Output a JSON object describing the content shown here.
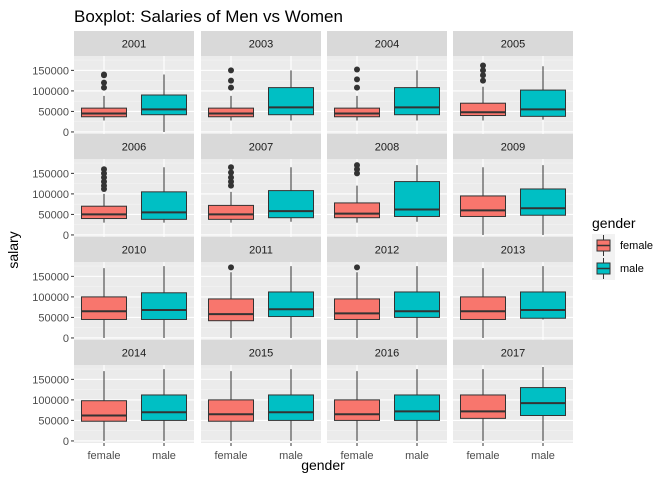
{
  "chart_data": {
    "type": "boxplot",
    "title": "Boxplot: Salaries of Men vs Women",
    "xlabel": "gender",
    "ylabel": "salary",
    "categories": [
      "female",
      "male"
    ],
    "ylim": [
      -5000,
      185000
    ],
    "yticks": [
      0,
      50000,
      100000,
      150000
    ],
    "ytick_labels": [
      "0",
      "50000",
      "100000",
      "150000"
    ],
    "facet_layout": {
      "rows": 4,
      "cols": 4
    },
    "grid": true,
    "legend": {
      "title": "gender",
      "position": "right",
      "entries": [
        {
          "label": "female",
          "color": "#F8766D"
        },
        {
          "label": "male",
          "color": "#00BFC4"
        }
      ]
    },
    "facets": [
      {
        "label": "2001",
        "boxes": [
          {
            "group": "female",
            "low": 28000,
            "q1": 37000,
            "median": 45000,
            "q3": 58000,
            "high": 88000,
            "outliers": [
              108000,
              120000,
              138000,
              140000
            ]
          },
          {
            "group": "male",
            "low": 0,
            "q1": 42000,
            "median": 55000,
            "q3": 90000,
            "high": 140000,
            "outliers": []
          }
        ]
      },
      {
        "label": "2003",
        "boxes": [
          {
            "group": "female",
            "low": 28000,
            "q1": 37000,
            "median": 45000,
            "q3": 58000,
            "high": 88000,
            "outliers": [
              108000,
              125000,
              150000
            ]
          },
          {
            "group": "male",
            "low": 28000,
            "q1": 42000,
            "median": 60000,
            "q3": 108000,
            "high": 150000,
            "outliers": []
          }
        ]
      },
      {
        "label": "2004",
        "boxes": [
          {
            "group": "female",
            "low": 28000,
            "q1": 37000,
            "median": 45000,
            "q3": 58000,
            "high": 88000,
            "outliers": [
              108000,
              128000,
              152000
            ]
          },
          {
            "group": "male",
            "low": 28000,
            "q1": 42000,
            "median": 60000,
            "q3": 108000,
            "high": 150000,
            "outliers": []
          }
        ]
      },
      {
        "label": "2005",
        "boxes": [
          {
            "group": "female",
            "low": 28000,
            "q1": 40000,
            "median": 48000,
            "q3": 70000,
            "high": 110000,
            "outliers": [
              125000,
              138000,
              150000,
              162000
            ]
          },
          {
            "group": "male",
            "low": 30000,
            "q1": 38000,
            "median": 55000,
            "q3": 102000,
            "high": 160000,
            "outliers": []
          }
        ]
      },
      {
        "label": "2006",
        "boxes": [
          {
            "group": "female",
            "low": 30000,
            "q1": 40000,
            "median": 50000,
            "q3": 70000,
            "high": 100000,
            "outliers": [
              112000,
              120000,
              130000,
              140000,
              150000,
              160000
            ]
          },
          {
            "group": "male",
            "low": 30000,
            "q1": 38000,
            "median": 55000,
            "q3": 105000,
            "high": 165000,
            "outliers": []
          }
        ]
      },
      {
        "label": "2007",
        "boxes": [
          {
            "group": "female",
            "low": 30000,
            "q1": 38000,
            "median": 50000,
            "q3": 72000,
            "high": 105000,
            "outliers": [
              120000,
              130000,
              140000,
              152000,
              165000
            ]
          },
          {
            "group": "male",
            "low": 32000,
            "q1": 42000,
            "median": 58000,
            "q3": 108000,
            "high": 165000,
            "outliers": []
          }
        ]
      },
      {
        "label": "2008",
        "boxes": [
          {
            "group": "female",
            "low": 30000,
            "q1": 42000,
            "median": 52000,
            "q3": 78000,
            "high": 120000,
            "outliers": [
              150000,
              160000,
              170000
            ]
          },
          {
            "group": "male",
            "low": 32000,
            "q1": 45000,
            "median": 62000,
            "q3": 130000,
            "high": 170000,
            "outliers": []
          }
        ]
      },
      {
        "label": "2009",
        "boxes": [
          {
            "group": "female",
            "low": 0,
            "q1": 45000,
            "median": 60000,
            "q3": 95000,
            "high": 165000,
            "outliers": []
          },
          {
            "group": "male",
            "low": 0,
            "q1": 48000,
            "median": 65000,
            "q3": 112000,
            "high": 170000,
            "outliers": []
          }
        ]
      },
      {
        "label": "2010",
        "boxes": [
          {
            "group": "female",
            "low": 0,
            "q1": 45000,
            "median": 65000,
            "q3": 100000,
            "high": 170000,
            "outliers": []
          },
          {
            "group": "male",
            "low": 0,
            "q1": 45000,
            "median": 68000,
            "q3": 110000,
            "high": 175000,
            "outliers": []
          }
        ]
      },
      {
        "label": "2011",
        "boxes": [
          {
            "group": "female",
            "low": 0,
            "q1": 42000,
            "median": 58000,
            "q3": 95000,
            "high": 160000,
            "outliers": [
              172000
            ]
          },
          {
            "group": "male",
            "low": 0,
            "q1": 52000,
            "median": 70000,
            "q3": 112000,
            "high": 175000,
            "outliers": []
          }
        ]
      },
      {
        "label": "2012",
        "boxes": [
          {
            "group": "female",
            "low": 0,
            "q1": 45000,
            "median": 60000,
            "q3": 95000,
            "high": 160000,
            "outliers": [
              172000
            ]
          },
          {
            "group": "male",
            "low": 0,
            "q1": 50000,
            "median": 65000,
            "q3": 112000,
            "high": 175000,
            "outliers": []
          }
        ]
      },
      {
        "label": "2013",
        "boxes": [
          {
            "group": "female",
            "low": 0,
            "q1": 45000,
            "median": 65000,
            "q3": 100000,
            "high": 170000,
            "outliers": []
          },
          {
            "group": "male",
            "low": 45000,
            "q1": 48000,
            "median": 68000,
            "q3": 112000,
            "high": 175000,
            "outliers": []
          }
        ]
      },
      {
        "label": "2014",
        "boxes": [
          {
            "group": "female",
            "low": 0,
            "q1": 48000,
            "median": 62000,
            "q3": 98000,
            "high": 170000,
            "outliers": []
          },
          {
            "group": "male",
            "low": 0,
            "q1": 50000,
            "median": 70000,
            "q3": 112000,
            "high": 175000,
            "outliers": []
          }
        ]
      },
      {
        "label": "2015",
        "boxes": [
          {
            "group": "female",
            "low": 0,
            "q1": 48000,
            "median": 65000,
            "q3": 100000,
            "high": 170000,
            "outliers": []
          },
          {
            "group": "male",
            "low": 0,
            "q1": 50000,
            "median": 70000,
            "q3": 112000,
            "high": 175000,
            "outliers": []
          }
        ]
      },
      {
        "label": "2016",
        "boxes": [
          {
            "group": "female",
            "low": 0,
            "q1": 50000,
            "median": 65000,
            "q3": 100000,
            "high": 170000,
            "outliers": []
          },
          {
            "group": "male",
            "low": 0,
            "q1": 50000,
            "median": 72000,
            "q3": 112000,
            "high": 175000,
            "outliers": []
          }
        ]
      },
      {
        "label": "2017",
        "boxes": [
          {
            "group": "female",
            "low": 0,
            "q1": 55000,
            "median": 72000,
            "q3": 112000,
            "high": 175000,
            "outliers": []
          },
          {
            "group": "male",
            "low": 0,
            "q1": 62000,
            "median": 92000,
            "q3": 130000,
            "high": 180000,
            "outliers": []
          }
        ]
      }
    ]
  }
}
